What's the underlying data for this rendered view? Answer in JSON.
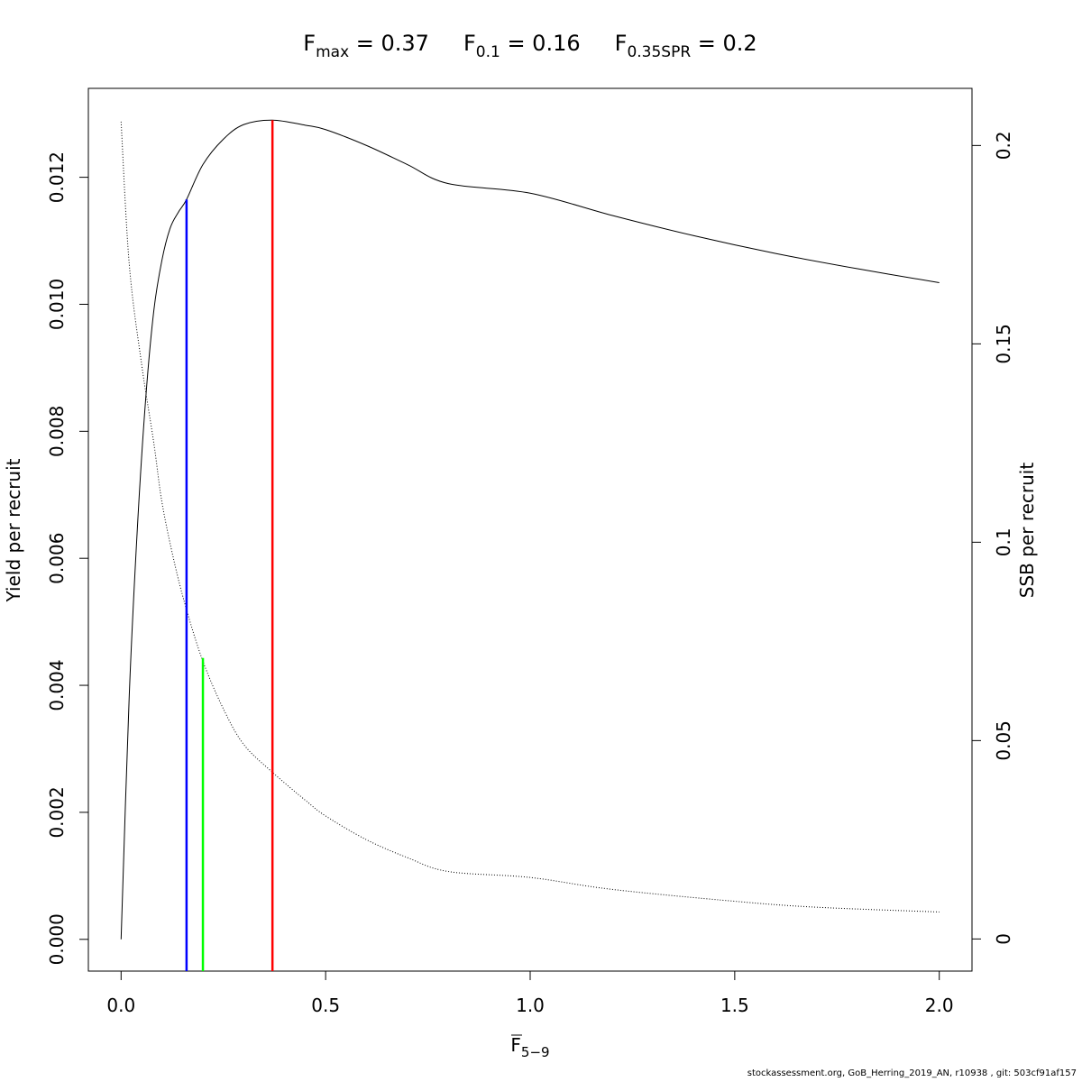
{
  "chart_data": {
    "type": "line",
    "title": {
      "fmax": {
        "sym": "F",
        "sub": "max",
        "value": "= 0.37"
      },
      "f01": {
        "sym": "F",
        "sub": "0.1",
        "value": "= 0.16"
      },
      "fspr": {
        "sym": "F",
        "sub": "0.35SPR",
        "value": "= 0.2"
      }
    },
    "xlabel": {
      "sym": "F",
      "sub": "5−9"
    },
    "ylabel_left": "Yield per recruit",
    "ylabel_right": "SSB per recruit",
    "xlim": [
      -0.08,
      2.08
    ],
    "ylim_left": [
      -0.0005,
      0.0134
    ],
    "ylim_right": [
      -0.0081,
      0.2144
    ],
    "x_ticks": [
      {
        "value": 0.0,
        "label": "0.0"
      },
      {
        "value": 0.5,
        "label": "0.5"
      },
      {
        "value": 1.0,
        "label": "1.0"
      },
      {
        "value": 1.5,
        "label": "1.5"
      },
      {
        "value": 2.0,
        "label": "2.0"
      }
    ],
    "y_ticks_left": [
      {
        "value": 0.0,
        "label": "0.000"
      },
      {
        "value": 0.002,
        "label": "0.002"
      },
      {
        "value": 0.004,
        "label": "0.004"
      },
      {
        "value": 0.006,
        "label": "0.006"
      },
      {
        "value": 0.008,
        "label": "0.008"
      },
      {
        "value": 0.01,
        "label": "0.010"
      },
      {
        "value": 0.012,
        "label": "0.012"
      }
    ],
    "y_ticks_right": [
      {
        "value": 0.0,
        "label": "0"
      },
      {
        "value": 0.05,
        "label": "0.05"
      },
      {
        "value": 0.1,
        "label": "0.1"
      },
      {
        "value": 0.15,
        "label": "0.15"
      },
      {
        "value": 0.2,
        "label": "0.2"
      }
    ],
    "series": [
      {
        "axis": "left",
        "style": "solid",
        "color": "#000000",
        "x": [
          0,
          0.02,
          0.04,
          0.06,
          0.08,
          0.1,
          0.12,
          0.14,
          0.16,
          0.2,
          0.25,
          0.3,
          0.37,
          0.45,
          0.5,
          0.6,
          0.7,
          0.8,
          1.0,
          1.2,
          1.4,
          1.6,
          1.8,
          2.0
        ],
        "values": [
          0,
          0.00385,
          0.0065,
          0.0085,
          0.0099,
          0.0107,
          0.0112,
          0.01145,
          0.01165,
          0.0122,
          0.0126,
          0.01283,
          0.0129,
          0.01282,
          0.01275,
          0.0125,
          0.0122,
          0.0119,
          0.01175,
          0.0114,
          0.01108,
          0.0108,
          0.01056,
          0.01034
        ]
      },
      {
        "axis": "right",
        "style": "dotted",
        "color": "#000000",
        "x": [
          0,
          0.02,
          0.05,
          0.08,
          0.1,
          0.13,
          0.16,
          0.2,
          0.25,
          0.3,
          0.37,
          0.45,
          0.5,
          0.6,
          0.7,
          0.8,
          1.0,
          1.2,
          1.5,
          1.7,
          2.0
        ],
        "values": [
          0.206,
          0.17,
          0.145,
          0.125,
          0.11,
          0.095,
          0.083,
          0.07,
          0.058,
          0.049,
          0.042,
          0.035,
          0.031,
          0.025,
          0.0205,
          0.017,
          0.0155,
          0.0125,
          0.0095,
          0.008,
          0.0068
        ]
      }
    ],
    "reference_lines": [
      {
        "name": "F0.1",
        "x": 0.16,
        "ymax_left": 0.01165,
        "color": "#0000ff"
      },
      {
        "name": "F0.35SPR",
        "x": 0.2,
        "ymax_left": 0.00443,
        "color": "#00ff00"
      },
      {
        "name": "Fmax",
        "x": 0.37,
        "ymax_left": 0.0129,
        "color": "#ff0000"
      }
    ],
    "grid": false,
    "footer": "stockassessment.org, GoB_Herring_2019_AN, r10938 , git: 503cf91af157"
  }
}
